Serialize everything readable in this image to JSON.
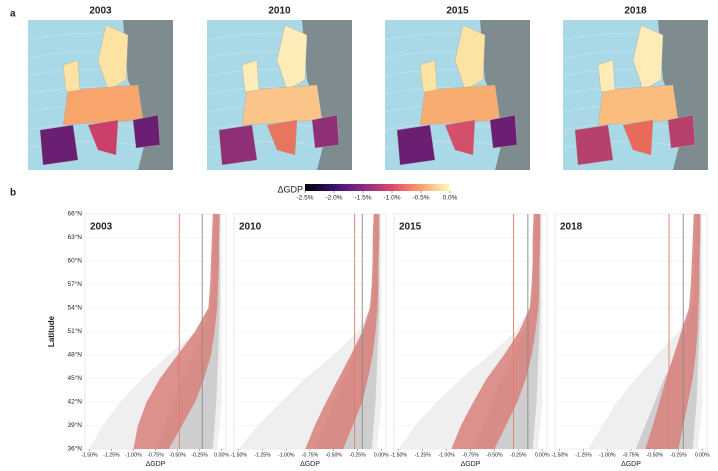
{
  "panels": [
    "a",
    "b"
  ],
  "maps": [
    {
      "title": "2003"
    },
    {
      "title": "2010"
    },
    {
      "title": "2015"
    },
    {
      "title": "2018"
    }
  ],
  "colorbar": {
    "label": "ΔGDP",
    "lim": [
      -2.5,
      0
    ],
    "colors": [
      "#000004",
      "#3b0f70",
      "#8c2981",
      "#de4968",
      "#fe9f6d",
      "#fcfdbf"
    ],
    "ticks": [
      {
        "value": -2.5,
        "label": "-2.5%"
      },
      {
        "value": -2.0,
        "label": "-2.0%"
      },
      {
        "value": -1.5,
        "label": "-1.5%"
      },
      {
        "value": -1.0,
        "label": "-1.0%"
      },
      {
        "value": -0.5,
        "label": "-0.5%"
      },
      {
        "value": 0,
        "label": "0.0%"
      }
    ]
  },
  "chart_data": [
    {
      "type": "band",
      "title": "2003",
      "xlabel": "ΔGDP",
      "ylabel": "Latitude",
      "xlim": [
        -1.55,
        0.05
      ],
      "ylim": [
        36,
        66
      ],
      "xticks": [
        {
          "value": -1.5,
          "label": "-1.50%"
        },
        {
          "value": -1.25,
          "label": "-1.25%"
        },
        {
          "value": -1.0,
          "label": "-1.00%"
        },
        {
          "value": -0.75,
          "label": "-0.75%"
        },
        {
          "value": -0.5,
          "label": "-0.50%"
        },
        {
          "value": -0.25,
          "label": "-0.25%"
        },
        {
          "value": 0,
          "label": "0.00%"
        }
      ],
      "yticks": [
        {
          "value": 36,
          "label": "36°N"
        },
        {
          "value": 39,
          "label": "39°N"
        },
        {
          "value": 42,
          "label": "42°N"
        },
        {
          "value": 45,
          "label": "45°N"
        },
        {
          "value": 48,
          "label": "48°N"
        },
        {
          "value": 51,
          "label": "51°N"
        },
        {
          "value": 54,
          "label": "54°N"
        },
        {
          "value": 57,
          "label": "57°N"
        },
        {
          "value": 60,
          "label": "60°N"
        },
        {
          "value": 63,
          "label": "63°N"
        },
        {
          "value": 66,
          "label": "66°N"
        }
      ],
      "y": [
        36,
        39,
        42,
        45,
        48,
        51,
        54,
        57,
        60,
        63,
        66
      ],
      "series": [
        {
          "color": "#ececec",
          "lower": [
            -1.5,
            -1.35,
            -1.15,
            -0.9,
            -0.6,
            -0.3,
            -0.15,
            -0.12,
            -0.12,
            -0.11,
            -0.1
          ],
          "upper": [
            -0.05,
            -0.02,
            0,
            0,
            0,
            0,
            0,
            0,
            0,
            0,
            0
          ]
        },
        {
          "color": "#c8c8c8",
          "lower": [
            -0.75,
            -0.65,
            -0.55,
            -0.45,
            -0.32,
            -0.2,
            -0.12,
            -0.1,
            -0.1,
            -0.09,
            -0.08
          ],
          "upper": [
            -0.1,
            -0.08,
            -0.06,
            -0.05,
            -0.04,
            -0.03,
            -0.02,
            -0.02,
            -0.02,
            -0.02,
            -0.02
          ]
        },
        {
          "color": "#d9807a",
          "lower": [
            -1.0,
            -0.95,
            -0.85,
            -0.7,
            -0.5,
            -0.3,
            -0.15,
            -0.13,
            -0.12,
            -0.11,
            -0.1
          ],
          "upper": [
            -0.6,
            -0.45,
            -0.3,
            -0.2,
            -0.12,
            -0.08,
            -0.05,
            -0.04,
            -0.03,
            -0.03,
            -0.02
          ]
        }
      ],
      "lines": [
        {
          "value": -0.48,
          "color": "#e07a72"
        },
        {
          "value": -0.22,
          "color": "#888888"
        }
      ]
    },
    {
      "type": "band",
      "title": "2010",
      "xlabel": "ΔGDP",
      "xlim": [
        -1.55,
        0.05
      ],
      "ylim": [
        36,
        66
      ],
      "xticks": [
        {
          "value": -1.5,
          "label": "-1.50%"
        },
        {
          "value": -1.25,
          "label": "-1.25%"
        },
        {
          "value": -1.0,
          "label": "-1.00%"
        },
        {
          "value": -0.75,
          "label": "-0.75%"
        },
        {
          "value": -0.5,
          "label": "-0.50%"
        },
        {
          "value": -0.25,
          "label": "-0.25%"
        },
        {
          "value": 0,
          "label": "0.00%"
        }
      ],
      "yticks": [
        36,
        39,
        42,
        45,
        48,
        51,
        54,
        57,
        60,
        63,
        66
      ],
      "y": [
        36,
        39,
        42,
        45,
        48,
        51,
        54,
        57,
        60,
        63,
        66
      ],
      "series": [
        {
          "color": "#ececec",
          "lower": [
            -1.5,
            -1.3,
            -1.05,
            -0.8,
            -0.5,
            -0.25,
            -0.12,
            -0.1,
            -0.1,
            -0.09,
            -0.08
          ],
          "upper": [
            -0.05,
            -0.02,
            0,
            0,
            0,
            0,
            0,
            0,
            0,
            0,
            0
          ]
        },
        {
          "color": "#c8c8c8",
          "lower": [
            -0.7,
            -0.6,
            -0.5,
            -0.4,
            -0.28,
            -0.18,
            -0.1,
            -0.08,
            -0.08,
            -0.07,
            -0.07
          ],
          "upper": [
            -0.1,
            -0.08,
            -0.06,
            -0.05,
            -0.04,
            -0.03,
            -0.02,
            -0.02,
            -0.02,
            -0.02,
            -0.02
          ]
        },
        {
          "color": "#d9807a",
          "lower": [
            -0.8,
            -0.7,
            -0.58,
            -0.45,
            -0.32,
            -0.2,
            -0.12,
            -0.1,
            -0.09,
            -0.09,
            -0.08
          ],
          "upper": [
            -0.4,
            -0.3,
            -0.2,
            -0.14,
            -0.09,
            -0.06,
            -0.04,
            -0.03,
            -0.03,
            -0.02,
            -0.02
          ]
        }
      ],
      "lines": [
        {
          "value": -0.28,
          "color": "#e07a72"
        },
        {
          "value": -0.2,
          "color": "#888888"
        }
      ]
    },
    {
      "type": "band",
      "title": "2015",
      "xlabel": "ΔGDP",
      "xlim": [
        -1.55,
        0.05
      ],
      "ylim": [
        36,
        66
      ],
      "xticks": [
        {
          "value": -1.5,
          "label": "-1.50%"
        },
        {
          "value": -1.25,
          "label": "-1.25%"
        },
        {
          "value": -1.0,
          "label": "-1.00%"
        },
        {
          "value": -0.75,
          "label": "-0.75%"
        },
        {
          "value": -0.5,
          "label": "-0.50%"
        },
        {
          "value": -0.25,
          "label": "-0.25%"
        },
        {
          "value": 0,
          "label": "0.00%"
        }
      ],
      "yticks": [
        36,
        39,
        42,
        45,
        48,
        51,
        54,
        57,
        60,
        63,
        66
      ],
      "y": [
        36,
        39,
        42,
        45,
        48,
        51,
        54,
        57,
        60,
        63,
        66
      ],
      "series": [
        {
          "color": "#ececec",
          "lower": [
            -1.5,
            -1.33,
            -1.1,
            -0.85,
            -0.55,
            -0.28,
            -0.13,
            -0.11,
            -0.1,
            -0.1,
            -0.09
          ],
          "upper": [
            -0.05,
            -0.02,
            0,
            0,
            0,
            0,
            0,
            0,
            0,
            0,
            0
          ]
        },
        {
          "color": "#c8c8c8",
          "lower": [
            -0.72,
            -0.62,
            -0.52,
            -0.42,
            -0.3,
            -0.19,
            -0.11,
            -0.09,
            -0.09,
            -0.08,
            -0.07
          ],
          "upper": [
            -0.1,
            -0.08,
            -0.06,
            -0.05,
            -0.04,
            -0.03,
            -0.02,
            -0.02,
            -0.02,
            -0.02,
            -0.02
          ]
        },
        {
          "color": "#d9807a",
          "lower": [
            -0.95,
            -0.85,
            -0.72,
            -0.58,
            -0.4,
            -0.24,
            -0.13,
            -0.11,
            -0.1,
            -0.1,
            -0.09
          ],
          "upper": [
            -0.5,
            -0.38,
            -0.26,
            -0.17,
            -0.11,
            -0.07,
            -0.04,
            -0.03,
            -0.03,
            -0.02,
            -0.02
          ]
        }
      ],
      "lines": [
        {
          "value": -0.3,
          "color": "#e07a72"
        },
        {
          "value": -0.15,
          "color": "#888888"
        }
      ]
    },
    {
      "type": "band",
      "title": "2018",
      "xlabel": "ΔGDP",
      "xlim": [
        -1.55,
        0.05
      ],
      "ylim": [
        36,
        66
      ],
      "xticks": [
        {
          "value": -1.5,
          "label": "-1.50%"
        },
        {
          "value": -1.25,
          "label": "-1.25%"
        },
        {
          "value": -1.0,
          "label": "-1.00%"
        },
        {
          "value": -0.75,
          "label": "-0.75%"
        },
        {
          "value": -0.5,
          "label": "-0.50%"
        },
        {
          "value": -0.25,
          "label": "-0.25%"
        },
        {
          "value": 0,
          "label": "0.00%"
        }
      ],
      "yticks": [
        36,
        39,
        42,
        45,
        48,
        51,
        54,
        57,
        60,
        63,
        66
      ],
      "y": [
        36,
        39,
        42,
        45,
        48,
        51,
        54,
        57,
        60,
        63,
        66
      ],
      "series": [
        {
          "color": "#ececec",
          "lower": [
            -1.2,
            -1.05,
            -0.9,
            -0.7,
            -0.48,
            -0.25,
            -0.12,
            -0.1,
            -0.1,
            -0.09,
            -0.08
          ],
          "upper": [
            -0.05,
            -0.02,
            0,
            0,
            0,
            0,
            0,
            0,
            0,
            0,
            0
          ]
        },
        {
          "color": "#c8c8c8",
          "lower": [
            -0.7,
            -0.6,
            -0.5,
            -0.4,
            -0.28,
            -0.18,
            -0.1,
            -0.08,
            -0.08,
            -0.07,
            -0.07
          ],
          "upper": [
            -0.1,
            -0.08,
            -0.06,
            -0.05,
            -0.04,
            -0.03,
            -0.02,
            -0.02,
            -0.02,
            -0.02,
            -0.02
          ]
        },
        {
          "color": "#d9807a",
          "lower": [
            -0.6,
            -0.52,
            -0.45,
            -0.38,
            -0.3,
            -0.22,
            -0.14,
            -0.12,
            -0.11,
            -0.1,
            -0.09
          ],
          "upper": [
            -0.25,
            -0.2,
            -0.15,
            -0.1,
            -0.07,
            -0.05,
            -0.04,
            -0.03,
            -0.03,
            -0.02,
            -0.02
          ]
        }
      ],
      "lines": [
        {
          "value": -0.35,
          "color": "#e07a72"
        },
        {
          "value": -0.2,
          "color": "#888888"
        }
      ]
    }
  ]
}
